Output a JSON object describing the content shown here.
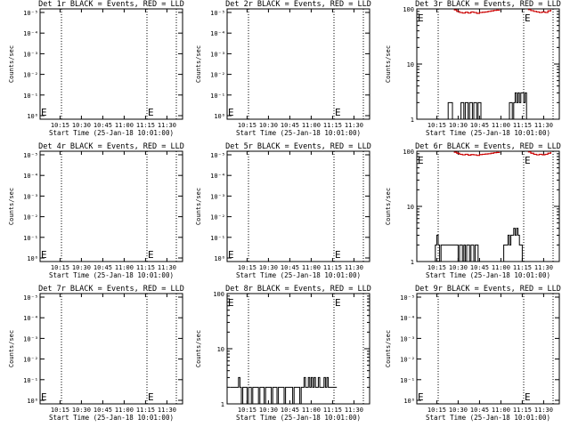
{
  "chart_data": [
    {
      "type": "line",
      "title": "Det 1r BLACK = Events, RED = LLD",
      "ylabel": "Counts/sec",
      "xlabel": "Start Time (25-Jan-18 10:01:00)",
      "xticks": [
        "10:15",
        "10:30",
        "10:45",
        "11:00",
        "11:15",
        "11:30"
      ],
      "yscale": "log",
      "yticks": [
        "10^0",
        "10^-1",
        "10^-2",
        "10^-3",
        "10^-4",
        "10^-5"
      ],
      "markers": [
        "E",
        "E"
      ],
      "series": []
    },
    {
      "type": "line",
      "title": "Det 2r BLACK = Events, RED = LLD",
      "ylabel": "Counts/sec",
      "xlabel": "Start Time (25-Jan-18 10:01:00)",
      "xticks": [
        "10:15",
        "10:30",
        "10:45",
        "11:00",
        "11:15",
        "11:30"
      ],
      "yscale": "log",
      "yticks": [
        "10^0",
        "10^-1",
        "10^-2",
        "10^-3",
        "10^-4",
        "10^-5"
      ],
      "markers": [
        "E",
        "E"
      ],
      "series": []
    },
    {
      "type": "line",
      "title": "Det 3r BLACK = Events, RED = LLD",
      "ylabel": "Counts/sec",
      "xlabel": "Start Time (25-Jan-18 10:01:00)",
      "xticks": [
        "10:15",
        "10:30",
        "10:45",
        "11:00",
        "11:15",
        "11:30"
      ],
      "yscale": "log",
      "yticks": [
        "1",
        "10",
        "100"
      ],
      "ylim": [
        1,
        100
      ],
      "markers": [
        "E",
        "E"
      ],
      "series": [
        {
          "color": "#000000",
          "x": [
            "10:21",
            "10:23",
            "10:25",
            "10:26",
            "10:31",
            "10:32",
            "10:33",
            "10:34",
            "10:35",
            "10:36",
            "10:37",
            "10:38",
            "10:39",
            "10:40",
            "10:41",
            "10:42",
            "10:43",
            "10:44",
            "10:45",
            "10:46",
            "11:05",
            "11:06",
            "11:07",
            "11:08",
            "11:09",
            "11:10",
            "11:11",
            "11:12",
            "11:13",
            "11:14",
            "11:15",
            "11:16",
            "11:17",
            "11:18"
          ],
          "values": [
            1,
            2,
            2,
            1,
            1,
            2,
            2,
            1,
            2,
            2,
            1,
            2,
            2,
            1,
            2,
            2,
            1,
            2,
            2,
            1,
            1,
            2,
            2,
            1,
            2,
            3,
            2,
            3,
            2,
            3,
            3,
            2,
            3,
            1
          ]
        },
        {
          "color": "#cc0000",
          "x": [
            "10:27",
            "10:29",
            "10:31",
            "10:33",
            "10:35",
            "10:37",
            "10:39",
            "10:41",
            "10:43",
            "10:45",
            "10:47",
            "10:49",
            "10:51",
            "10:53",
            "10:55",
            "10:57",
            "10:59"
          ],
          "values": [
            96,
            90,
            86,
            84,
            87,
            84,
            88,
            86,
            83,
            86,
            87,
            88,
            90,
            92,
            94,
            95,
            96
          ]
        },
        {
          "color": "#cc0000",
          "x": [
            "11:19",
            "11:21",
            "11:23",
            "11:25",
            "11:27",
            "11:29",
            "11:31",
            "11:33",
            "11:35"
          ],
          "values": [
            97,
            93,
            90,
            88,
            86,
            88,
            86,
            92,
            97
          ]
        }
      ]
    },
    {
      "type": "line",
      "title": "Det 4r BLACK = Events, RED = LLD",
      "ylabel": "Counts/sec",
      "xlabel": "Start Time (25-Jan-18 10:01:00)",
      "xticks": [
        "10:15",
        "10:30",
        "10:45",
        "11:00",
        "11:15",
        "11:30"
      ],
      "yscale": "log",
      "yticks": [
        "10^0",
        "10^-1",
        "10^-2",
        "10^-3",
        "10^-4",
        "10^-5"
      ],
      "markers": [
        "E",
        "E"
      ],
      "series": []
    },
    {
      "type": "line",
      "title": "Det 5r BLACK = Events, RED = LLD",
      "ylabel": "Counts/sec",
      "xlabel": "Start Time (25-Jan-18 10:01:00)",
      "xticks": [
        "10:15",
        "10:30",
        "10:45",
        "11:00",
        "11:15",
        "11:30"
      ],
      "yscale": "log",
      "yticks": [
        "10^0",
        "10^-1",
        "10^-2",
        "10^-3",
        "10^-4",
        "10^-5"
      ],
      "markers": [
        "E",
        "E"
      ],
      "series": []
    },
    {
      "type": "line",
      "title": "Det 6r BLACK = Events, RED = LLD",
      "ylabel": "Counts/sec",
      "xlabel": "Start Time (25-Jan-18 10:01:00)",
      "xticks": [
        "10:15",
        "10:30",
        "10:45",
        "11:00",
        "11:15",
        "11:30"
      ],
      "yscale": "log",
      "yticks": [
        "1",
        "10",
        "100"
      ],
      "ylim": [
        1,
        100
      ],
      "markers": [
        "E",
        "E"
      ],
      "series": [
        {
          "color": "#000000",
          "x": [
            "10:13",
            "10:14",
            "10:15",
            "10:16",
            "10:17",
            "10:18",
            "10:30",
            "10:31",
            "10:32",
            "10:33",
            "10:34",
            "10:35",
            "10:36",
            "10:37",
            "10:38",
            "10:39",
            "10:40",
            "10:41",
            "10:42",
            "10:43",
            "10:44",
            "10:45",
            "11:00",
            "11:02",
            "11:03",
            "11:04",
            "11:05",
            "11:06",
            "11:07",
            "11:08",
            "11:09",
            "11:10",
            "11:11",
            "11:12",
            "11:13",
            "11:14",
            "11:15"
          ],
          "values": [
            1,
            2,
            3,
            2,
            1,
            2,
            1,
            2,
            2,
            1,
            2,
            1,
            2,
            2,
            1,
            2,
            2,
            1,
            2,
            2,
            1,
            1,
            1,
            2,
            2,
            2,
            3,
            2,
            3,
            3,
            4,
            3,
            4,
            3,
            2,
            2,
            1
          ]
        },
        {
          "color": "#cc0000",
          "x": [
            "10:27",
            "10:29",
            "10:31",
            "10:33",
            "10:35",
            "10:37",
            "10:39",
            "10:41",
            "10:43",
            "10:45",
            "10:47",
            "10:49",
            "10:51",
            "10:53",
            "10:55",
            "10:57",
            "10:59"
          ],
          "values": [
            96,
            92,
            88,
            86,
            88,
            85,
            87,
            86,
            84,
            87,
            88,
            89,
            90,
            92,
            94,
            95,
            96
          ]
        },
        {
          "color": "#cc0000",
          "x": [
            "11:19",
            "11:21",
            "11:23",
            "11:25",
            "11:27",
            "11:29",
            "11:31",
            "11:33",
            "11:35"
          ],
          "values": [
            97,
            92,
            88,
            86,
            88,
            86,
            88,
            92,
            97
          ]
        }
      ]
    },
    {
      "type": "line",
      "title": "Det 7r BLACK = Events, RED = LLD",
      "ylabel": "Counts/sec",
      "xlabel": "Start Time (25-Jan-18 10:01:00)",
      "xticks": [
        "10:15",
        "10:30",
        "10:45",
        "11:00",
        "11:15",
        "11:30"
      ],
      "yscale": "log",
      "yticks": [
        "10^0",
        "10^-1",
        "10^-2",
        "10^-3",
        "10^-4",
        "10^-5"
      ],
      "markers": [
        "E",
        "E"
      ],
      "series": []
    },
    {
      "type": "line",
      "title": "Det 8r BLACK = Events, RED = LLD",
      "ylabel": "Counts/sec",
      "xlabel": "Start Time (25-Jan-18 10:01:00)",
      "xticks": [
        "10:15",
        "10:30",
        "10:45",
        "11:00",
        "11:15",
        "11:30"
      ],
      "yscale": "log",
      "yticks": [
        "1",
        "10",
        "100"
      ],
      "ylim": [
        1,
        100
      ],
      "markers": [
        "E",
        "E"
      ],
      "series": [
        {
          "color": "#000000",
          "x": [
            "10:03",
            "10:04",
            "10:05",
            "10:06",
            "10:07",
            "10:08",
            "10:09",
            "10:10",
            "10:11",
            "10:12",
            "10:13",
            "10:14",
            "10:15",
            "10:16",
            "10:17",
            "10:18",
            "10:19",
            "10:20",
            "10:21",
            "10:22",
            "10:23",
            "10:24",
            "10:25",
            "10:26",
            "10:27",
            "10:28",
            "10:29",
            "10:30",
            "10:31",
            "10:32",
            "10:33",
            "10:34",
            "10:35",
            "10:36",
            "10:37",
            "10:38",
            "10:39",
            "10:40",
            "10:41",
            "10:42",
            "10:43",
            "10:44",
            "10:45",
            "10:46",
            "10:47",
            "10:48",
            "10:49",
            "10:50",
            "10:51",
            "10:52",
            "10:53",
            "10:54",
            "10:55",
            "10:56",
            "10:57",
            "10:58",
            "10:59",
            "11:00",
            "11:01",
            "11:02",
            "11:03",
            "11:04",
            "11:05",
            "11:06",
            "11:07",
            "11:08",
            "11:09",
            "11:10",
            "11:11",
            "11:12",
            "11:13",
            "11:14",
            "11:15",
            "11:16",
            "11:17",
            "11:18"
          ],
          "values": [
            2,
            2,
            2,
            2,
            2,
            2,
            3,
            2,
            1,
            2,
            2,
            2,
            1,
            2,
            2,
            1,
            2,
            2,
            2,
            2,
            1,
            2,
            2,
            2,
            1,
            2,
            2,
            2,
            2,
            1,
            2,
            2,
            2,
            1,
            2,
            2,
            2,
            2,
            1,
            2,
            2,
            2,
            2,
            2,
            1,
            2,
            2,
            2,
            2,
            1,
            2,
            2,
            3,
            2,
            2,
            3,
            2,
            3,
            2,
            3,
            2,
            2,
            3,
            2,
            2,
            2,
            3,
            2,
            3,
            2,
            2,
            2,
            2,
            2,
            2,
            2
          ]
        }
      ]
    },
    {
      "type": "line",
      "title": "Det 9r BLACK = Events, RED = LLD",
      "ylabel": "Counts/sec",
      "xlabel": "Start Time (25-Jan-18 10:01:00)",
      "xticks": [
        "10:15",
        "10:30",
        "10:45",
        "11:00",
        "11:15",
        "11:30"
      ],
      "yscale": "log",
      "yticks": [
        "10^0",
        "10^-1",
        "10^-2",
        "10^-3",
        "10^-4",
        "10^-5"
      ],
      "markers": [
        "E",
        "E"
      ],
      "series": []
    }
  ]
}
